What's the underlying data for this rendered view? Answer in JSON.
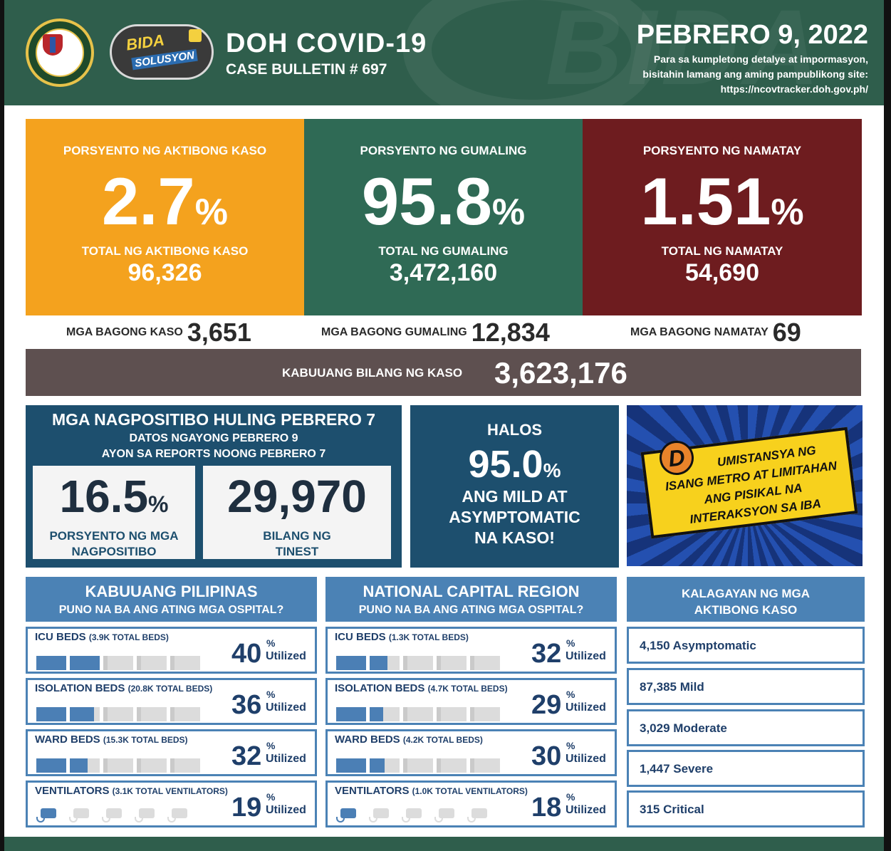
{
  "header": {
    "title": "DOH COVID-19",
    "bulletin": "CASE BULLETIN # 697",
    "date": "PEBRERO 9, 2022",
    "info_line1": "Para sa kumpletong detalye at impormasyon,",
    "info_line2": "bisitahin lamang ang aming pampublikong site:",
    "info_url": "https://ncovtracker.doh.gov.ph/",
    "logo_text_1": "BIDA",
    "logo_text_2": "SOLUSYON"
  },
  "stats": {
    "active": {
      "label": "PORSYENTO NG AKTIBONG KASO",
      "percent": "2.7",
      "total_label": "TOTAL NG AKTIBONG KASO",
      "total": "96,326"
    },
    "recovered": {
      "label": "PORSYENTO NG GUMALING",
      "percent": "95.8",
      "total_label": "TOTAL NG GUMALING",
      "total": "3,472,160"
    },
    "died": {
      "label": "PORSYENTO NG NAMATAY",
      "percent": "1.51",
      "total_label": "TOTAL NG NAMATAY",
      "total": "54,690"
    },
    "percent_sign": "%"
  },
  "new": {
    "cases_label": "MGA BAGONG KASO",
    "cases": "3,651",
    "recovered_label": "MGA BAGONG GUMALING",
    "recovered": "12,834",
    "died_label": "MGA BAGONG NAMATAY",
    "died": "69"
  },
  "total_cases": {
    "label": "KABUUANG BILANG NG KASO",
    "value": "3,623,176"
  },
  "positivity": {
    "title": "MGA NAGPOSITIBO HULING PEBRERO 7",
    "sub1": "DATOS NGAYONG PEBRERO 9",
    "sub2": "AYON SA REPORTS NOONG PEBRERO 7",
    "rate": "16.5",
    "rate_label1": "PORSYENTO NG MGA",
    "rate_label2": "NAGPOSITIBO",
    "tested": "29,970",
    "tested_label1": "BILANG NG",
    "tested_label2": "TINEST"
  },
  "mild": {
    "line1": "HALOS",
    "percent": "95.0",
    "line2": "ANG MILD AT",
    "line3": "ASYMPTOMATIC",
    "line4": "NA KASO!"
  },
  "distancing": {
    "letter": "D",
    "line1": "UMISTANSYA NG",
    "line2": "ISANG METRO AT LIMITAHAN",
    "line3": "ANG PISIKAL NA",
    "line4": "INTERAKSYON SA IBA"
  },
  "utilized_label": "Utilized",
  "philippines": {
    "title": "KABUUANG PILIPINAS",
    "subtitle": "PUNO NA BA ANG ATING MGA OSPITAL?",
    "rows": [
      {
        "name": "ICU BEDS",
        "capacity": "(3.9K TOTAL BEDS)",
        "value": "40",
        "ratio": 0.4,
        "kind": "bed"
      },
      {
        "name": "ISOLATION BEDS",
        "capacity": "(20.8K TOTAL BEDS)",
        "value": "36",
        "ratio": 0.36,
        "kind": "bed"
      },
      {
        "name": "WARD BEDS",
        "capacity": "(15.3K TOTAL BEDS)",
        "value": "32",
        "ratio": 0.32,
        "kind": "bed"
      },
      {
        "name": "VENTILATORS",
        "capacity": "(3.1K TOTAL VENTILATORS)",
        "value": "19",
        "ratio": 0.19,
        "kind": "vent"
      }
    ]
  },
  "ncr": {
    "title": "NATIONAL CAPITAL REGION",
    "subtitle": "PUNO NA BA ANG ATING MGA OSPITAL?",
    "rows": [
      {
        "name": "ICU BEDS",
        "capacity": "(1.3K TOTAL BEDS)",
        "value": "32",
        "ratio": 0.32,
        "kind": "bed"
      },
      {
        "name": "ISOLATION BEDS",
        "capacity": "(4.7K TOTAL BEDS)",
        "value": "29",
        "ratio": 0.29,
        "kind": "bed"
      },
      {
        "name": "WARD BEDS",
        "capacity": "(4.2K TOTAL BEDS)",
        "value": "30",
        "ratio": 0.3,
        "kind": "bed"
      },
      {
        "name": "VENTILATORS",
        "capacity": "(1.0K TOTAL VENTILATORS)",
        "value": "18",
        "ratio": 0.18,
        "kind": "vent"
      }
    ]
  },
  "active_status": {
    "title1": "KALAGAYAN NG MGA",
    "title2": "AKTIBONG KASO",
    "items": [
      "4,150 Asymptomatic",
      "87,385 Mild",
      "3,029 Moderate",
      "1,447 Severe",
      "315 Critical"
    ]
  },
  "colors": {
    "header_green": "#2f5e4c",
    "active_orange": "#f4a21e",
    "recovered_green": "#2f6a55",
    "died_maroon": "#6e1c1f",
    "panel_navy": "#1d4f6e",
    "panel_blue": "#4b82b5"
  }
}
